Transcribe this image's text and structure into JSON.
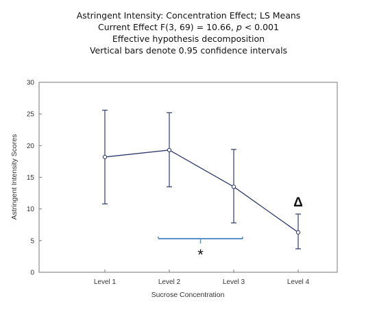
{
  "chart_data": {
    "type": "line",
    "title_lines": {
      "line1": "Astringent Intensity: Concentration Effect; LS Means",
      "line2_prefix": "Current Effect F(3, 69) = 10.66, ",
      "line2_p": "p",
      "line2_suffix": " < 0.001",
      "line3": "Effective hypothesis decomposition",
      "line4": "Vertical bars denote 0.95 confidence intervals"
    },
    "xlabel": "Sucrose Concentration",
    "ylabel": "Astringent Intensity Scores",
    "categories": [
      "Level 1",
      "Level 2",
      "Level 3",
      "Level 4"
    ],
    "ylim": [
      0,
      30
    ],
    "yticks": [
      "0",
      "5",
      "10",
      "15",
      "20",
      "25",
      "30"
    ],
    "grid": false,
    "series": [
      {
        "values": [
          18.2,
          19.3,
          13.5,
          6.3
        ],
        "ci_upper": [
          25.6,
          25.2,
          19.4,
          9.2
        ],
        "ci_lower": [
          10.8,
          13.5,
          7.8,
          3.7
        ],
        "color": "#2e3a6e"
      }
    ],
    "annotations": {
      "bracket_mark": "*",
      "level4_mark": "Δ",
      "bracket_range": [
        "Level 2",
        "Level 3"
      ],
      "bracket_color": "#5b8fc7"
    }
  }
}
